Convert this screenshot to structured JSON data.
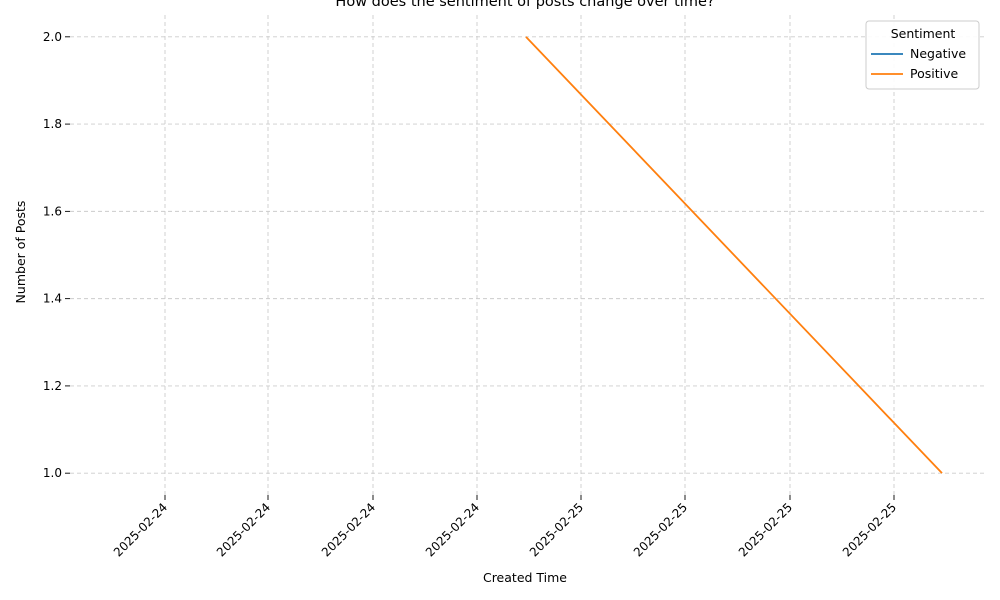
{
  "chart_data": {
    "type": "line",
    "title": "How does the sentiment of posts change over time?",
    "xlabel": "Created Time",
    "ylabel": "Number of Posts",
    "x_tick_labels": [
      "2025-02-24",
      "2025-02-24",
      "2025-02-24",
      "2025-02-24",
      "2025-02-25",
      "2025-02-25",
      "2025-02-25",
      "2025-02-25"
    ],
    "y_ticks": [
      1.0,
      1.2,
      1.4,
      1.6,
      1.8,
      2.0
    ],
    "y_tick_labels": [
      "1.0",
      "1.2",
      "1.4",
      "1.6",
      "1.8",
      "2.0"
    ],
    "ylim": [
      0.95,
      2.05
    ],
    "grid": true,
    "legend": {
      "title": "Sentiment",
      "placement": "top-right"
    },
    "series": [
      {
        "name": "Negative",
        "color": "#1f77b4",
        "points": []
      },
      {
        "name": "Positive",
        "color": "#ff7f0e",
        "points": [
          {
            "x": "2025-02-24",
            "y": 2
          },
          {
            "x": "2025-02-25",
            "y": 1
          }
        ]
      }
    ]
  }
}
